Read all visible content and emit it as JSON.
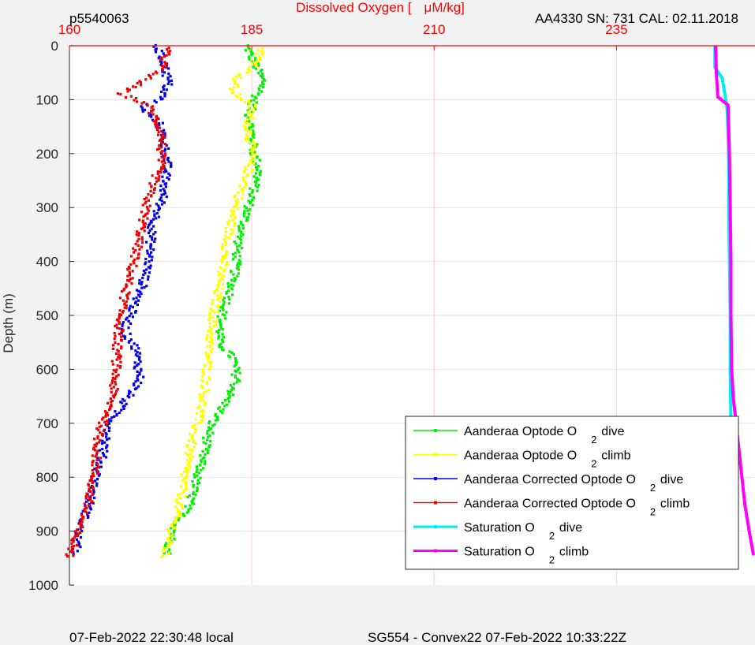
{
  "header": {
    "left_text": "p5540063",
    "right_text": "AA4330   SN: 731  CAL: 02.11.2018"
  },
  "footer": {
    "left": "07-Feb-2022 22:30:48 local",
    "center": "SG554 - Convex22 07-Feb-2022 10:33:22Z"
  },
  "chart_data": {
    "type": "scatter",
    "title": "",
    "xlabel": "Dissolved Oxygen [μM/kg]",
    "xlabel_parts": [
      "Dissolved Oxygen [",
      "μM/kg]"
    ],
    "ylabel": "Depth (m)",
    "xlim": [
      160,
      254
    ],
    "ylim": [
      0,
      1000
    ],
    "y_reversed": true,
    "x_axis_location": "top",
    "x_ticks": [
      160,
      185,
      210,
      235
    ],
    "y_ticks": [
      0,
      100,
      200,
      300,
      400,
      500,
      600,
      700,
      800,
      900,
      1000
    ],
    "grid": true,
    "legend_position": "bottom-right",
    "colors": {
      "x_axis": "#ff0000",
      "x_grid": "#ffcccc",
      "grid": "#e3e3e3",
      "axes": "#262626"
    },
    "series": [
      {
        "name": "Aanderaa Optode O 2 dive",
        "legend_parts": [
          "Aanderaa Optode O",
          "2",
          "dive"
        ],
        "color": "#00ee00",
        "style": "points",
        "points": [
          [
            184.3,
            0
          ],
          [
            185.3,
            30
          ],
          [
            186.7,
            70
          ],
          [
            185.3,
            100
          ],
          [
            184.6,
            130
          ],
          [
            185.0,
            160
          ],
          [
            185.3,
            200
          ],
          [
            186.0,
            230
          ],
          [
            185.2,
            270
          ],
          [
            184.3,
            310
          ],
          [
            183.2,
            360
          ],
          [
            182.8,
            410
          ],
          [
            182.0,
            460
          ],
          [
            180.9,
            500
          ],
          [
            180.5,
            550
          ],
          [
            182.5,
            580
          ],
          [
            183.0,
            620
          ],
          [
            181.5,
            660
          ],
          [
            179.5,
            700
          ],
          [
            178.3,
            760
          ],
          [
            177.5,
            800
          ],
          [
            176.5,
            850
          ],
          [
            174.9,
            880
          ],
          [
            173.8,
            920
          ],
          [
            173.3,
            945
          ]
        ]
      },
      {
        "name": "Aanderaa Optode O 2 climb",
        "legend_parts": [
          "Aanderaa Optode O",
          "2",
          "climb"
        ],
        "color": "#ffff00",
        "style": "points",
        "points": [
          [
            186.5,
            5
          ],
          [
            185.3,
            40
          ],
          [
            183.0,
            60
          ],
          [
            182.3,
            85
          ],
          [
            185.0,
            110
          ],
          [
            184.5,
            150
          ],
          [
            185.0,
            200
          ],
          [
            184.2,
            250
          ],
          [
            182.6,
            300
          ],
          [
            181.7,
            360
          ],
          [
            180.8,
            420
          ],
          [
            180.0,
            480
          ],
          [
            179.4,
            530
          ],
          [
            179.0,
            580
          ],
          [
            178.6,
            640
          ],
          [
            177.9,
            680
          ],
          [
            177.0,
            720
          ],
          [
            176.0,
            780
          ],
          [
            175.3,
            840
          ],
          [
            174.0,
            900
          ],
          [
            172.9,
            950
          ]
        ]
      },
      {
        "name": "Aanderaa Corrected Optode O 2 dive",
        "legend_parts": [
          "Aanderaa Corrected Optode O",
          "2",
          "dive"
        ],
        "color": "#0000ee",
        "style": "points",
        "points": [
          [
            171.9,
            0
          ],
          [
            172.9,
            30
          ],
          [
            173.6,
            70
          ],
          [
            172.4,
            100
          ],
          [
            169.6,
            115
          ],
          [
            172.2,
            140
          ],
          [
            173.0,
            180
          ],
          [
            173.4,
            220
          ],
          [
            172.8,
            280
          ],
          [
            171.3,
            340
          ],
          [
            170.9,
            400
          ],
          [
            169.9,
            450
          ],
          [
            168.3,
            500
          ],
          [
            167.5,
            530
          ],
          [
            169.1,
            560
          ],
          [
            169.7,
            620
          ],
          [
            167.5,
            660
          ],
          [
            165.6,
            700
          ],
          [
            164.5,
            760
          ],
          [
            163.6,
            800
          ],
          [
            162.5,
            860
          ],
          [
            161.2,
            900
          ],
          [
            160.8,
            945
          ]
        ]
      },
      {
        "name": "Aanderaa Corrected Optode O 2 climb",
        "legend_parts": [
          "Aanderaa Corrected Optode O",
          "2",
          "climb"
        ],
        "color": "#ee0000",
        "style": "points",
        "points": [
          [
            173.3,
            5
          ],
          [
            172.8,
            40
          ],
          [
            169.6,
            70
          ],
          [
            167.1,
            88
          ],
          [
            170.8,
            110
          ],
          [
            172.7,
            160
          ],
          [
            172.5,
            220
          ],
          [
            170.8,
            280
          ],
          [
            170.2,
            320
          ],
          [
            169.2,
            380
          ],
          [
            168.0,
            440
          ],
          [
            167.0,
            500
          ],
          [
            166.6,
            550
          ],
          [
            166.4,
            600
          ],
          [
            166.0,
            640
          ],
          [
            165.3,
            680
          ],
          [
            164.0,
            720
          ],
          [
            163.6,
            780
          ],
          [
            162.3,
            860
          ],
          [
            161.0,
            900
          ],
          [
            160.0,
            950
          ]
        ]
      },
      {
        "name": "Saturation O 2 dive",
        "legend_parts": [
          "Saturation O",
          "2",
          "dive"
        ],
        "color": "#00eeee",
        "style": "line",
        "points": [
          [
            248.5,
            0
          ],
          [
            248.5,
            40
          ],
          [
            249.5,
            60
          ],
          [
            250.0,
            100
          ],
          [
            250.2,
            120
          ],
          [
            250.3,
            160
          ],
          [
            250.4,
            220
          ],
          [
            250.4,
            300
          ],
          [
            250.5,
            400
          ],
          [
            250.6,
            500
          ],
          [
            250.6,
            600
          ],
          [
            250.7,
            700
          ]
        ]
      },
      {
        "name": "Saturation O 2 climb",
        "legend_parts": [
          "Saturation O",
          "2",
          "climb"
        ],
        "color": "#ff00ff",
        "style": "line",
        "points": [
          [
            248.6,
            0
          ],
          [
            248.7,
            50
          ],
          [
            248.9,
            95
          ],
          [
            250.3,
            110
          ],
          [
            250.4,
            160
          ],
          [
            250.5,
            200
          ],
          [
            250.6,
            300
          ],
          [
            250.7,
            400
          ],
          [
            250.7,
            500
          ],
          [
            250.8,
            600
          ],
          [
            251.0,
            650
          ],
          [
            251.4,
            700
          ],
          [
            251.8,
            750
          ],
          [
            252.2,
            800
          ],
          [
            252.6,
            850
          ],
          [
            253.2,
            900
          ],
          [
            253.8,
            945
          ]
        ]
      }
    ]
  }
}
